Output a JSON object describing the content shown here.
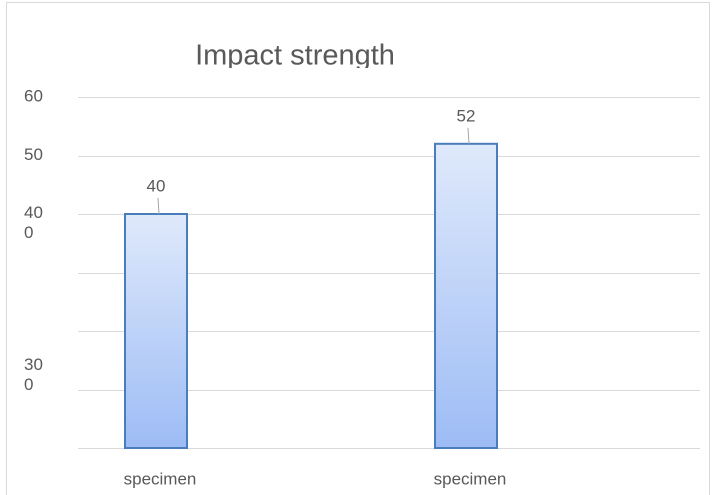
{
  "chart_data": {
    "type": "bar",
    "title": "Impact strength",
    "categories": [
      "specimen",
      "specimen"
    ],
    "values": [
      40,
      52
    ],
    "color": "#4a7ebb",
    "ylim": [
      0,
      60
    ],
    "gridlines": [
      0,
      10,
      20,
      30,
      40,
      50,
      60
    ],
    "yticks": [
      60,
      50,
      {
        "value": 40,
        "label": "40\n0"
      },
      {
        "value": 14,
        "label": "30\n0"
      }
    ],
    "grid": true
  }
}
